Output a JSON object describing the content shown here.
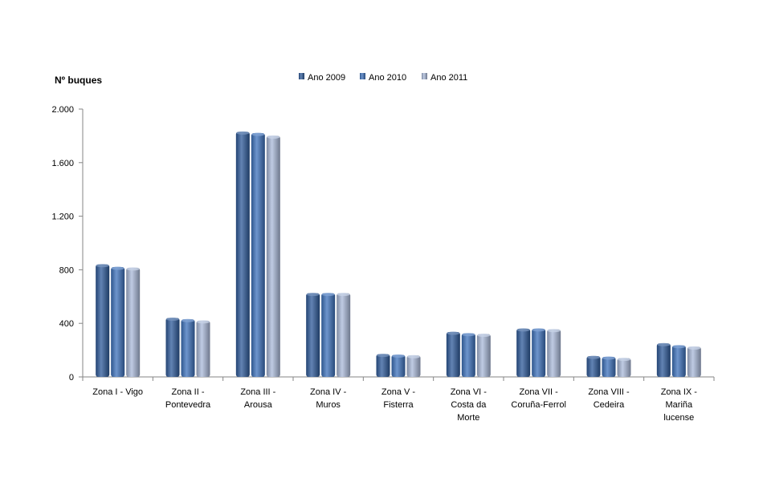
{
  "chart_data": {
    "type": "bar",
    "ylabel": "Nº  buques",
    "xlabel": "",
    "categories": [
      [
        "Zona I - Vigo"
      ],
      [
        "Zona II -",
        "Pontevedra"
      ],
      [
        "Zona III -",
        "Arousa"
      ],
      [
        "Zona IV -",
        "Muros"
      ],
      [
        "Zona V -",
        "Fisterra"
      ],
      [
        "Zona VI -",
        "Costa da",
        "Morte"
      ],
      [
        "Zona VII -",
        "Coruña-Ferrol"
      ],
      [
        "Zona VIII -",
        "Cedeira"
      ],
      [
        "Zona IX -",
        "Mariña",
        "lucense"
      ]
    ],
    "series": [
      {
        "name": "Ano 2009",
        "color": "#2E5A9A",
        "values": [
          840,
          440,
          1830,
          625,
          170,
          335,
          360,
          155,
          250
        ]
      },
      {
        "name": "Ano 2010",
        "color": "#3D72BC",
        "values": [
          820,
          430,
          1820,
          625,
          165,
          325,
          360,
          150,
          235
        ]
      },
      {
        "name": "Ano 2011",
        "color": "#A9B9D9",
        "values": [
          815,
          420,
          1800,
          625,
          160,
          320,
          355,
          140,
          225
        ]
      }
    ],
    "ylim": [
      0,
      2000
    ],
    "yticks": [
      0,
      400,
      800,
      1200,
      1600,
      2000
    ],
    "ytick_labels": [
      "0",
      "400",
      "800",
      "1.200",
      "1.600",
      "2.000"
    ],
    "legend_position": "top-center",
    "grid": false
  }
}
